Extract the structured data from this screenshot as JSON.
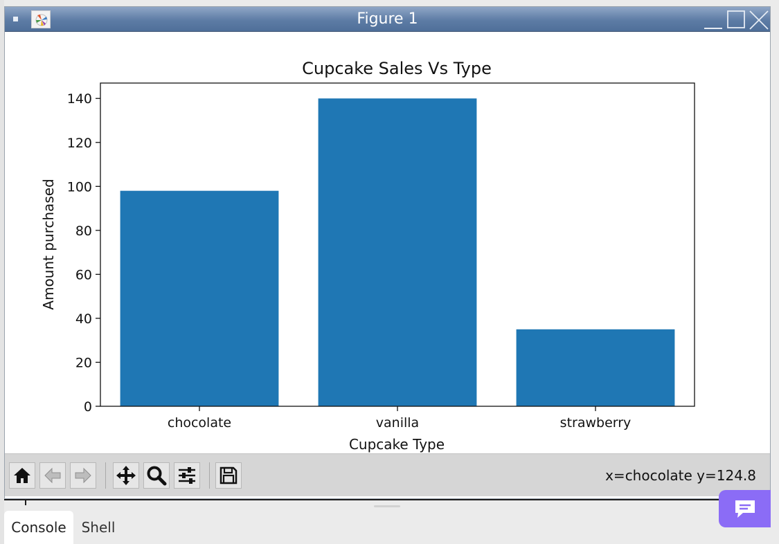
{
  "window": {
    "title": "Figure 1"
  },
  "chart_data": {
    "type": "bar",
    "title": "Cupcake Sales Vs Type",
    "xlabel": "Cupcake Type",
    "ylabel": "Amount purchased",
    "categories": [
      "chocolate",
      "vanilla",
      "strawberry"
    ],
    "values": [
      98,
      140,
      35
    ],
    "ylim": [
      0,
      147
    ],
    "yticks": [
      0,
      20,
      40,
      60,
      80,
      100,
      120,
      140
    ],
    "bar_color": "#1f77b4",
    "grid": false,
    "legend": "none"
  },
  "toolbar": {
    "buttons": [
      "home-icon",
      "back-icon",
      "forward-icon",
      "pan-icon",
      "zoom-icon",
      "configure-subplots-icon",
      "save-icon"
    ],
    "coords": "x=chocolate y=124.8"
  },
  "tabs": [
    {
      "label": "Console",
      "active": true
    },
    {
      "label": "Shell",
      "active": false
    }
  ],
  "colors": {
    "titlebar": "#5d7ca5",
    "chat_accent": "#8b6cf6",
    "bar": "#1f77b4"
  }
}
